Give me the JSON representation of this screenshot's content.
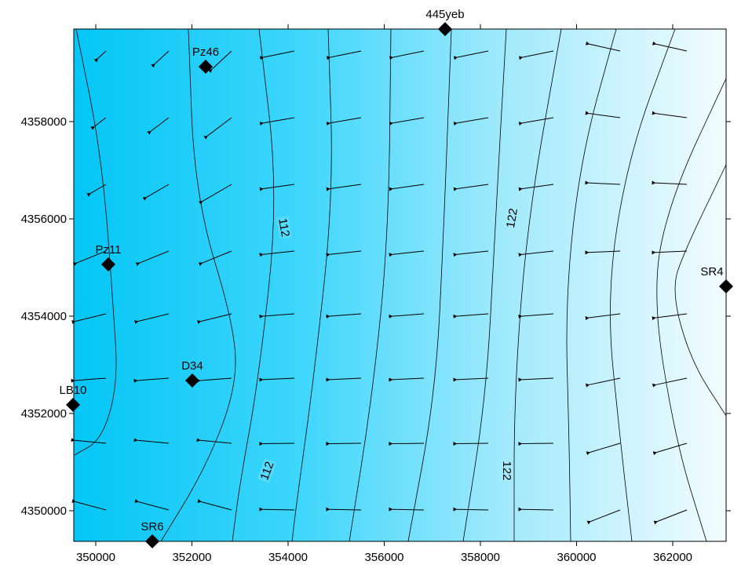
{
  "chart_data": {
    "type": "contour",
    "xlim": [
      349543,
      363110
    ],
    "ylim": [
      4349371,
      4359903
    ],
    "xticks": [
      350000,
      352000,
      354000,
      356000,
      358000,
      360000,
      362000
    ],
    "yticks": [
      4350000,
      4352000,
      4354000,
      4356000,
      4358000
    ],
    "wells": {
      "names": [
        "445yeb",
        "Pz46",
        "Pz11",
        "SR4",
        "D34",
        "LB10",
        "SR6"
      ],
      "x": [
        357265,
        352286,
        350261,
        363110,
        352008,
        349527,
        351176
      ],
      "y": [
        4359900,
        4359129,
        4355065,
        4354613,
        4352677,
        4352177,
        4349371
      ]
    },
    "contour_labels": [
      112,
      112,
      122,
      122
    ]
  }
}
